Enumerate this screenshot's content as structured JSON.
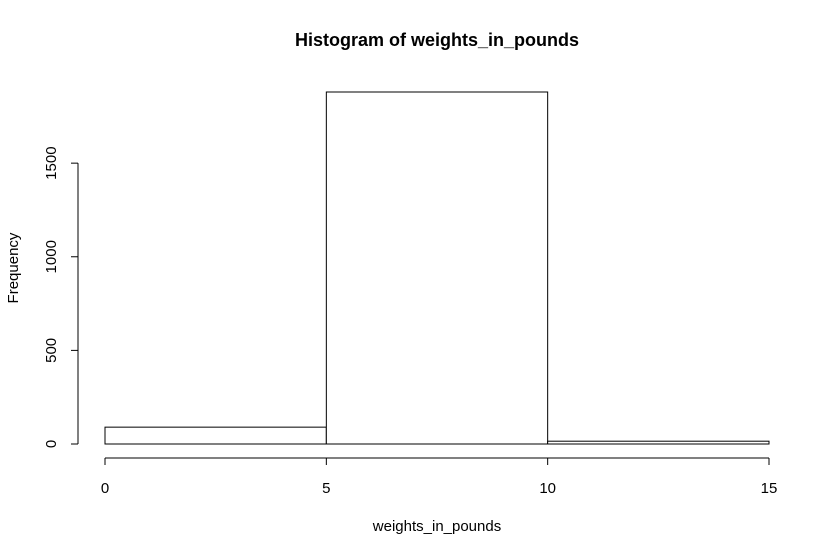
{
  "chart_data": {
    "type": "bar",
    "title": "Histogram of weights_in_pounds",
    "xlabel": "weights_in_pounds",
    "ylabel": "Frequency",
    "bins": [
      {
        "x0": 0,
        "x1": 5,
        "count": 90
      },
      {
        "x0": 5,
        "x1": 10,
        "count": 1880
      },
      {
        "x0": 10,
        "x1": 15,
        "count": 15
      }
    ],
    "xlim": [
      0,
      15
    ],
    "ylim": [
      0,
      1880
    ],
    "x_ticks": [
      0,
      5,
      10,
      15
    ],
    "y_ticks": [
      0,
      500,
      1000,
      1500
    ],
    "grid": false,
    "legend": "none"
  }
}
